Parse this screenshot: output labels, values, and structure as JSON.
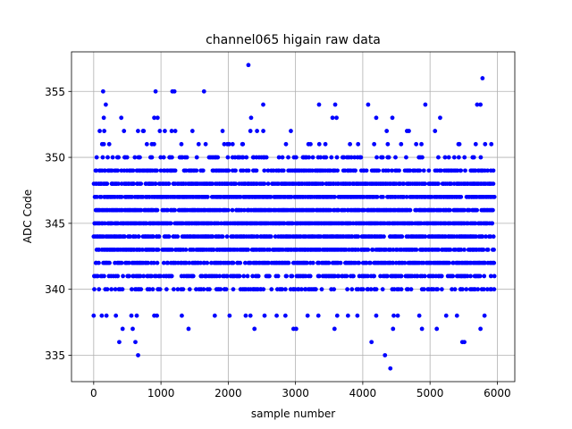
{
  "chart_data": {
    "type": "scatter",
    "title": "channel065 higain raw data",
    "xlabel": "sample number",
    "ylabel": "ADC Code",
    "xlim": [
      -330,
      6260
    ],
    "ylim": [
      333,
      358
    ],
    "xticks": [
      0,
      1000,
      2000,
      3000,
      4000,
      5000,
      6000
    ],
    "yticks": [
      335,
      340,
      345,
      350,
      355
    ],
    "grid": true,
    "marker_color": "#0000ff",
    "n_samples": 6000,
    "dense_levels": [
      340,
      341,
      342,
      343,
      344,
      345,
      346,
      347,
      348,
      349
    ],
    "level_fill_fraction": {
      "340": 0.45,
      "341": 0.55,
      "342": 0.7,
      "343": 0.75,
      "344": 0.8,
      "345": 0.85,
      "346": 0.85,
      "347": 0.85,
      "348": 0.8,
      "349": 0.55,
      "350": 0.3,
      "351": 0.12,
      "352": 0.06
    },
    "outliers": [
      {
        "x": 2300,
        "y": 357
      },
      {
        "x": 5780,
        "y": 356
      },
      {
        "x": 140,
        "y": 355
      },
      {
        "x": 920,
        "y": 355
      },
      {
        "x": 1170,
        "y": 355
      },
      {
        "x": 1200,
        "y": 355
      },
      {
        "x": 1640,
        "y": 355
      },
      {
        "x": 180,
        "y": 354
      },
      {
        "x": 2520,
        "y": 354
      },
      {
        "x": 3350,
        "y": 354
      },
      {
        "x": 3590,
        "y": 354
      },
      {
        "x": 4080,
        "y": 354
      },
      {
        "x": 4930,
        "y": 354
      },
      {
        "x": 5700,
        "y": 354
      },
      {
        "x": 5750,
        "y": 354
      },
      {
        "x": 150,
        "y": 353
      },
      {
        "x": 410,
        "y": 353
      },
      {
        "x": 900,
        "y": 353
      },
      {
        "x": 950,
        "y": 353
      },
      {
        "x": 2340,
        "y": 353
      },
      {
        "x": 3550,
        "y": 353
      },
      {
        "x": 3610,
        "y": 353
      },
      {
        "x": 4200,
        "y": 353
      },
      {
        "x": 4440,
        "y": 353
      },
      {
        "x": 5150,
        "y": 353
      },
      {
        "x": 4330,
        "y": 335
      },
      {
        "x": 660,
        "y": 335
      },
      {
        "x": 4410,
        "y": 334
      },
      {
        "x": 380,
        "y": 336
      },
      {
        "x": 620,
        "y": 336
      },
      {
        "x": 4130,
        "y": 336
      },
      {
        "x": 5480,
        "y": 336
      },
      {
        "x": 5510,
        "y": 336
      },
      {
        "x": 430,
        "y": 337
      },
      {
        "x": 580,
        "y": 337
      },
      {
        "x": 1410,
        "y": 337
      },
      {
        "x": 2390,
        "y": 337
      },
      {
        "x": 2970,
        "y": 337
      },
      {
        "x": 3010,
        "y": 337
      },
      {
        "x": 3580,
        "y": 337
      },
      {
        "x": 4450,
        "y": 337
      },
      {
        "x": 4880,
        "y": 337
      },
      {
        "x": 5100,
        "y": 337
      },
      {
        "x": 5750,
        "y": 337
      },
      {
        "x": 0,
        "y": 338
      },
      {
        "x": 120,
        "y": 338
      },
      {
        "x": 190,
        "y": 338
      },
      {
        "x": 330,
        "y": 338
      },
      {
        "x": 560,
        "y": 338
      },
      {
        "x": 640,
        "y": 338
      },
      {
        "x": 900,
        "y": 338
      },
      {
        "x": 940,
        "y": 338
      },
      {
        "x": 1310,
        "y": 338
      },
      {
        "x": 1800,
        "y": 338
      },
      {
        "x": 2020,
        "y": 338
      },
      {
        "x": 2260,
        "y": 338
      },
      {
        "x": 2330,
        "y": 338
      },
      {
        "x": 2540,
        "y": 338
      },
      {
        "x": 2720,
        "y": 338
      },
      {
        "x": 2850,
        "y": 338
      },
      {
        "x": 3180,
        "y": 338
      },
      {
        "x": 3340,
        "y": 338
      },
      {
        "x": 3620,
        "y": 338
      },
      {
        "x": 3780,
        "y": 338
      },
      {
        "x": 3920,
        "y": 338
      },
      {
        "x": 4200,
        "y": 338
      },
      {
        "x": 4460,
        "y": 338
      },
      {
        "x": 4520,
        "y": 338
      },
      {
        "x": 4840,
        "y": 338
      },
      {
        "x": 5240,
        "y": 338
      },
      {
        "x": 5400,
        "y": 338
      },
      {
        "x": 5810,
        "y": 338
      }
    ]
  }
}
